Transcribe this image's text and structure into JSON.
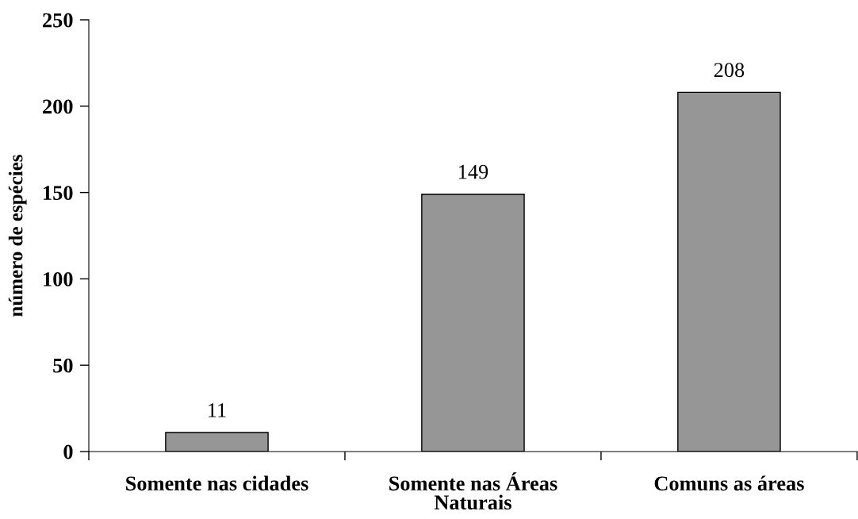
{
  "chart_data": {
    "type": "bar",
    "ylabel": "número de espécies",
    "categories": [
      "Somente nas cidades",
      "Somente nas Áreas Naturais",
      "Comuns as áreas"
    ],
    "values": [
      11,
      149,
      208
    ],
    "color": "#969696",
    "ylim": [
      0,
      250
    ],
    "yticks": [
      0,
      50,
      100,
      150,
      200,
      250
    ],
    "data_labels": true,
    "grid": false
  }
}
